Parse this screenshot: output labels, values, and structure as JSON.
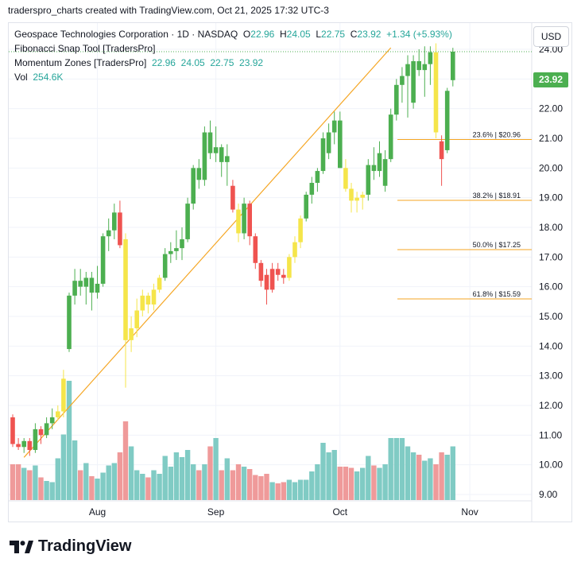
{
  "caption": "traderspro_charts created with TradingView.com, Oct 21, 2025 17:32 UTC-3",
  "brand": "TradingView",
  "currency_button": "USD",
  "last_price_tag": "23.92",
  "legend": {
    "symbol": "Geospace Technologies Corporation · 1D · NASDAQ",
    "o_label": "O",
    "o_value": "22.96",
    "h_label": "H",
    "h_value": "24.05",
    "l_label": "L",
    "l_value": "22.75",
    "c_label": "C",
    "c_value": "23.92",
    "change": "+1.34 (+5.93%)",
    "fib_tool": "Fibonacci Snap Tool [TradersPro]",
    "momentum": "Momentum Zones [TradersPro]",
    "momentum_values": "22.96  24.05  22.75  23.92",
    "vol_label": "Vol",
    "vol_value": "254.6K"
  },
  "colors": {
    "up": "#4caf50",
    "down": "#ef5350",
    "neutral": "#f5e54a",
    "vol_up": "#80cbc4",
    "vol_down": "#ef9a9a",
    "fib": "#f5a623"
  },
  "chart_data": {
    "type": "candlestick",
    "y_range": [
      8.8,
      24.8
    ],
    "y_ticks": [
      "9.00",
      "10.00",
      "11.00",
      "12.00",
      "13.00",
      "14.00",
      "15.00",
      "16.00",
      "17.00",
      "18.00",
      "19.00",
      "20.00",
      "21.00",
      "22.00",
      "23.00",
      "24.00"
    ],
    "x_ticks": [
      {
        "label": "Aug",
        "index": 15
      },
      {
        "label": "Sep",
        "index": 36
      },
      {
        "label": "Oct",
        "index": 58
      },
      {
        "label": "Nov",
        "index": 81
      }
    ],
    "fib_levels": [
      {
        "label": "23.6% | $20.96",
        "value": 20.96
      },
      {
        "label": "38.2% | $18.91",
        "value": 18.91
      },
      {
        "label": "50.0% | $17.25",
        "value": 17.25
      },
      {
        "label": "61.8% | $15.59",
        "value": 15.59
      }
    ],
    "trend_line": {
      "from_index": 2,
      "from_value": 10.25,
      "to_index": 67,
      "to_value": 24.05
    },
    "candles": [
      {
        "o": 11.6,
        "h": 11.7,
        "l": 10.6,
        "c": 10.7,
        "z": "down",
        "v": 0.3
      },
      {
        "o": 10.7,
        "h": 10.9,
        "l": 10.5,
        "c": 10.6,
        "z": "down",
        "v": 0.3
      },
      {
        "o": 10.6,
        "h": 10.9,
        "l": 10.4,
        "c": 10.8,
        "z": "up",
        "v": 0.27
      },
      {
        "o": 10.8,
        "h": 10.9,
        "l": 10.3,
        "c": 10.5,
        "z": "down",
        "v": 0.25
      },
      {
        "o": 10.5,
        "h": 11.4,
        "l": 10.4,
        "c": 11.2,
        "z": "up",
        "v": 0.29
      },
      {
        "o": 11.2,
        "h": 11.3,
        "l": 10.7,
        "c": 11.0,
        "z": "down",
        "v": 0.19
      },
      {
        "o": 11.0,
        "h": 11.6,
        "l": 10.9,
        "c": 11.4,
        "z": "up",
        "v": 0.16
      },
      {
        "o": 11.4,
        "h": 11.9,
        "l": 11.2,
        "c": 11.6,
        "z": "up",
        "v": 0.15
      },
      {
        "o": 11.6,
        "h": 12.0,
        "l": 11.5,
        "c": 11.8,
        "z": "neutral",
        "v": 0.35
      },
      {
        "o": 11.8,
        "h": 13.2,
        "l": 11.6,
        "c": 12.9,
        "z": "neutral",
        "v": 0.55
      },
      {
        "o": 13.9,
        "h": 15.8,
        "l": 13.8,
        "c": 15.7,
        "z": "up",
        "v": 1.0
      },
      {
        "o": 15.7,
        "h": 16.6,
        "l": 15.4,
        "c": 16.2,
        "z": "up",
        "v": 0.5
      },
      {
        "o": 16.2,
        "h": 16.6,
        "l": 15.7,
        "c": 16.0,
        "z": "up",
        "v": 0.25
      },
      {
        "o": 16.0,
        "h": 16.5,
        "l": 15.4,
        "c": 16.3,
        "z": "up",
        "v": 0.31
      },
      {
        "o": 16.3,
        "h": 16.5,
        "l": 15.2,
        "c": 15.8,
        "z": "up",
        "v": 0.2
      },
      {
        "o": 15.8,
        "h": 16.7,
        "l": 15.6,
        "c": 16.1,
        "z": "up",
        "v": 0.18
      },
      {
        "o": 16.1,
        "h": 17.8,
        "l": 16.0,
        "c": 17.7,
        "z": "up",
        "v": 0.23
      },
      {
        "o": 17.7,
        "h": 18.3,
        "l": 17.2,
        "c": 17.9,
        "z": "up",
        "v": 0.29
      },
      {
        "o": 17.9,
        "h": 18.8,
        "l": 17.6,
        "c": 18.5,
        "z": "up",
        "v": 0.31
      },
      {
        "o": 18.5,
        "h": 18.9,
        "l": 17.3,
        "c": 17.4,
        "z": "down",
        "v": 0.4
      },
      {
        "o": 17.6,
        "h": 17.8,
        "l": 12.6,
        "c": 14.2,
        "z": "neutral",
        "v": 0.66
      },
      {
        "o": 14.2,
        "h": 15.0,
        "l": 13.8,
        "c": 14.6,
        "z": "neutral",
        "v": 0.45
      },
      {
        "o": 14.6,
        "h": 15.6,
        "l": 14.3,
        "c": 15.2,
        "z": "neutral",
        "v": 0.25
      },
      {
        "o": 15.2,
        "h": 15.9,
        "l": 15.0,
        "c": 15.7,
        "z": "neutral",
        "v": 0.22
      },
      {
        "o": 15.7,
        "h": 15.8,
        "l": 15.1,
        "c": 15.4,
        "z": "neutral",
        "v": 0.19
      },
      {
        "o": 15.4,
        "h": 16.1,
        "l": 15.2,
        "c": 15.9,
        "z": "neutral",
        "v": 0.25
      },
      {
        "o": 15.9,
        "h": 16.4,
        "l": 15.8,
        "c": 16.3,
        "z": "neutral",
        "v": 0.22
      },
      {
        "o": 16.3,
        "h": 17.3,
        "l": 16.2,
        "c": 17.1,
        "z": "up",
        "v": 0.37
      },
      {
        "o": 17.1,
        "h": 17.5,
        "l": 16.8,
        "c": 17.2,
        "z": "up",
        "v": 0.28
      },
      {
        "o": 17.2,
        "h": 17.9,
        "l": 16.9,
        "c": 17.3,
        "z": "up",
        "v": 0.4
      },
      {
        "o": 17.3,
        "h": 18.0,
        "l": 16.9,
        "c": 17.6,
        "z": "up",
        "v": 0.36
      },
      {
        "o": 17.6,
        "h": 19.0,
        "l": 17.5,
        "c": 18.8,
        "z": "up",
        "v": 0.42
      },
      {
        "o": 18.8,
        "h": 20.1,
        "l": 18.6,
        "c": 20.0,
        "z": "up",
        "v": 0.3
      },
      {
        "o": 20.0,
        "h": 20.3,
        "l": 19.3,
        "c": 19.6,
        "z": "up",
        "v": 0.25
      },
      {
        "o": 19.6,
        "h": 21.4,
        "l": 19.4,
        "c": 21.2,
        "z": "up",
        "v": 0.3
      },
      {
        "o": 21.2,
        "h": 21.6,
        "l": 20.3,
        "c": 20.5,
        "z": "up",
        "v": 0.45
      },
      {
        "o": 20.5,
        "h": 21.4,
        "l": 20.2,
        "c": 20.7,
        "z": "up",
        "v": 0.52
      },
      {
        "o": 20.7,
        "h": 20.8,
        "l": 19.7,
        "c": 20.2,
        "z": "up",
        "v": 0.25
      },
      {
        "o": 20.2,
        "h": 20.8,
        "l": 19.4,
        "c": 20.4,
        "z": "up",
        "v": 0.35
      },
      {
        "o": 19.4,
        "h": 19.6,
        "l": 18.5,
        "c": 18.6,
        "z": "down",
        "v": 0.25
      },
      {
        "o": 18.6,
        "h": 18.8,
        "l": 17.5,
        "c": 17.8,
        "z": "neutral",
        "v": 0.3
      },
      {
        "o": 17.8,
        "h": 19.0,
        "l": 17.6,
        "c": 18.8,
        "z": "up",
        "v": 0.28
      },
      {
        "o": 18.8,
        "h": 18.9,
        "l": 17.4,
        "c": 17.7,
        "z": "down",
        "v": 0.26
      },
      {
        "o": 17.7,
        "h": 17.8,
        "l": 16.6,
        "c": 16.8,
        "z": "down",
        "v": 0.21
      },
      {
        "o": 16.8,
        "h": 16.9,
        "l": 16.0,
        "c": 16.2,
        "z": "down",
        "v": 0.2
      },
      {
        "o": 16.4,
        "h": 16.6,
        "l": 15.4,
        "c": 15.9,
        "z": "down",
        "v": 0.22
      },
      {
        "o": 15.9,
        "h": 16.8,
        "l": 15.8,
        "c": 16.6,
        "z": "down",
        "v": 0.15
      },
      {
        "o": 16.6,
        "h": 16.8,
        "l": 16.2,
        "c": 16.4,
        "z": "down",
        "v": 0.14
      },
      {
        "o": 16.4,
        "h": 16.6,
        "l": 16.1,
        "c": 16.3,
        "z": "down",
        "v": 0.15
      },
      {
        "o": 16.3,
        "h": 17.1,
        "l": 16.2,
        "c": 17.0,
        "z": "neutral",
        "v": 0.17
      },
      {
        "o": 17.0,
        "h": 17.7,
        "l": 16.8,
        "c": 17.5,
        "z": "neutral",
        "v": 0.15
      },
      {
        "o": 17.5,
        "h": 18.4,
        "l": 17.3,
        "c": 18.3,
        "z": "neutral",
        "v": 0.17
      },
      {
        "o": 18.3,
        "h": 19.2,
        "l": 18.2,
        "c": 19.1,
        "z": "up",
        "v": 0.17
      },
      {
        "o": 19.1,
        "h": 19.7,
        "l": 18.8,
        "c": 19.5,
        "z": "up",
        "v": 0.24
      },
      {
        "o": 19.5,
        "h": 20.0,
        "l": 19.2,
        "c": 19.9,
        "z": "up",
        "v": 0.3
      },
      {
        "o": 19.9,
        "h": 21.2,
        "l": 19.8,
        "c": 21.0,
        "z": "up",
        "v": 0.48
      },
      {
        "o": 20.5,
        "h": 21.5,
        "l": 20.3,
        "c": 21.2,
        "z": "up",
        "v": 0.4
      },
      {
        "o": 21.2,
        "h": 21.9,
        "l": 20.8,
        "c": 21.6,
        "z": "up",
        "v": 0.42
      },
      {
        "o": 21.6,
        "h": 21.9,
        "l": 20.0,
        "c": 20.0,
        "z": "up",
        "v": 0.28
      },
      {
        "o": 20.0,
        "h": 20.3,
        "l": 19.2,
        "c": 19.3,
        "z": "neutral",
        "v": 0.28
      },
      {
        "o": 19.3,
        "h": 19.5,
        "l": 18.5,
        "c": 18.9,
        "z": "neutral",
        "v": 0.27
      },
      {
        "o": 18.9,
        "h": 19.2,
        "l": 18.5,
        "c": 19.0,
        "z": "neutral",
        "v": 0.24
      },
      {
        "o": 19.0,
        "h": 19.2,
        "l": 18.6,
        "c": 19.1,
        "z": "neutral",
        "v": 0.27
      },
      {
        "o": 19.1,
        "h": 20.3,
        "l": 18.9,
        "c": 20.1,
        "z": "up",
        "v": 0.37
      },
      {
        "o": 20.1,
        "h": 20.7,
        "l": 19.6,
        "c": 19.9,
        "z": "up",
        "v": 0.29
      },
      {
        "o": 19.9,
        "h": 20.9,
        "l": 19.7,
        "c": 20.5,
        "z": "up",
        "v": 0.27
      },
      {
        "o": 19.4,
        "h": 20.6,
        "l": 19.2,
        "c": 20.3,
        "z": "up",
        "v": 0.3
      },
      {
        "o": 20.3,
        "h": 22.0,
        "l": 20.2,
        "c": 21.8,
        "z": "up",
        "v": 0.52
      },
      {
        "o": 21.8,
        "h": 23.0,
        "l": 21.6,
        "c": 22.8,
        "z": "up",
        "v": 0.52
      },
      {
        "o": 22.8,
        "h": 23.4,
        "l": 22.2,
        "c": 23.1,
        "z": "up",
        "v": 0.52
      },
      {
        "o": 23.1,
        "h": 23.8,
        "l": 21.7,
        "c": 23.5,
        "z": "up",
        "v": 0.45
      },
      {
        "o": 22.2,
        "h": 23.8,
        "l": 22.0,
        "c": 23.6,
        "z": "up",
        "v": 0.4
      },
      {
        "o": 23.6,
        "h": 24.0,
        "l": 23.1,
        "c": 23.3,
        "z": "up",
        "v": 0.38
      },
      {
        "o": 23.3,
        "h": 24.1,
        "l": 22.4,
        "c": 23.5,
        "z": "up",
        "v": 0.33
      },
      {
        "o": 23.5,
        "h": 24.1,
        "l": 22.8,
        "c": 23.9,
        "z": "up",
        "v": 0.35
      },
      {
        "o": 23.9,
        "h": 24.2,
        "l": 21.0,
        "c": 21.2,
        "z": "neutral",
        "v": 0.3
      },
      {
        "o": 20.9,
        "h": 21.1,
        "l": 19.4,
        "c": 20.3,
        "z": "down",
        "v": 0.4
      },
      {
        "o": 20.6,
        "h": 22.7,
        "l": 20.5,
        "c": 22.6,
        "z": "up",
        "v": 0.38
      },
      {
        "o": 22.96,
        "h": 24.05,
        "l": 22.75,
        "c": 23.92,
        "z": "up",
        "v": 0.45
      }
    ]
  }
}
